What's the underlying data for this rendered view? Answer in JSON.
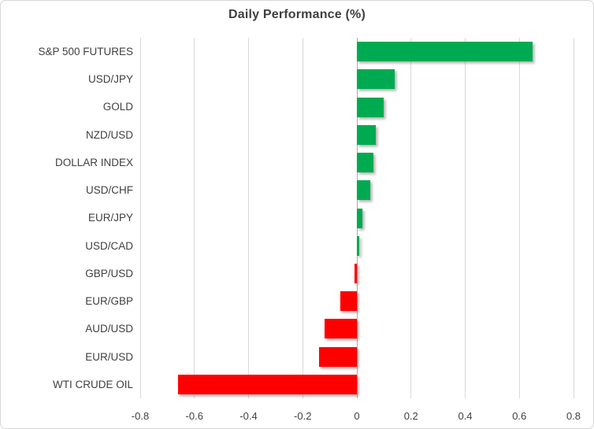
{
  "chart": {
    "title": "Daily Performance (%)"
  },
  "chart_data": {
    "type": "bar",
    "orientation": "horizontal",
    "title": "Daily Performance (%)",
    "categories": [
      "S&P 500 FUTURES",
      "USD/JPY",
      "GOLD",
      "NZD/USD",
      "DOLLAR INDEX",
      "USD/CHF",
      "EUR/JPY",
      "USD/CAD",
      "GBP/USD",
      "EUR/GBP",
      "AUD/USD",
      "EUR/USD",
      "WTI CRUDE OIL"
    ],
    "values": [
      0.65,
      0.14,
      0.1,
      0.07,
      0.06,
      0.05,
      0.02,
      0.01,
      -0.01,
      -0.06,
      -0.12,
      -0.14,
      -0.66
    ],
    "xlabel": "",
    "ylabel": "",
    "xlim": [
      -0.8,
      0.8
    ],
    "xticks": [
      -0.8,
      -0.6,
      -0.4,
      -0.2,
      0,
      0.2,
      0.4,
      0.6,
      0.8
    ],
    "xtick_labels": [
      "-0.8",
      "-0.6",
      "-0.4",
      "-0.2",
      "0",
      "0.2",
      "0.4",
      "0.6",
      "0.8"
    ],
    "grid": true,
    "legend": false,
    "bar_color_positive": "#00aa50",
    "bar_color_negative": "#ff0000",
    "gridline_color": "#d9d9d9",
    "zero_line_color": "#ababab",
    "text_color": "#404040"
  }
}
